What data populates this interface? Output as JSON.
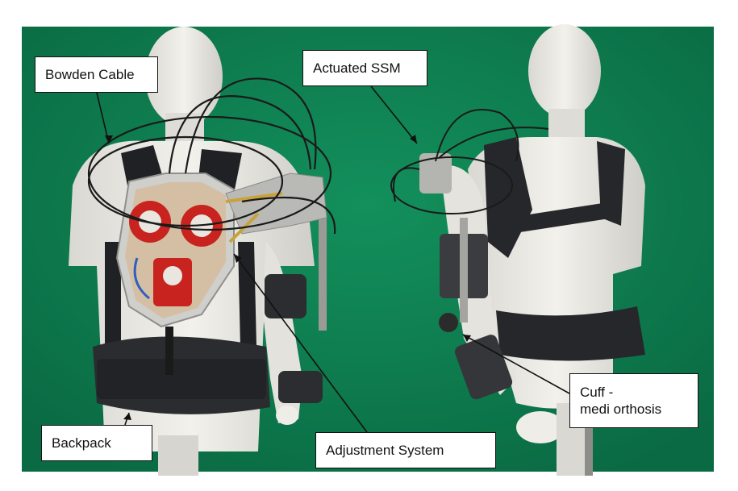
{
  "labels": {
    "bowden_cable": "Bowden Cable",
    "actuated_ssm": "Actuated SSM",
    "backpack": "Backpack",
    "adjustment_system": "Adjustment System",
    "cuff_line1": "Cuff -",
    "cuff_line2": "medi orthosis"
  },
  "colors": {
    "backdrop": "#0f7a4e",
    "mannequin": "#e9e8e3",
    "strap": "#2b2d30",
    "motor_red": "#c8231e",
    "frame": "#b9b9b6",
    "cable": "#1a1a1a"
  }
}
